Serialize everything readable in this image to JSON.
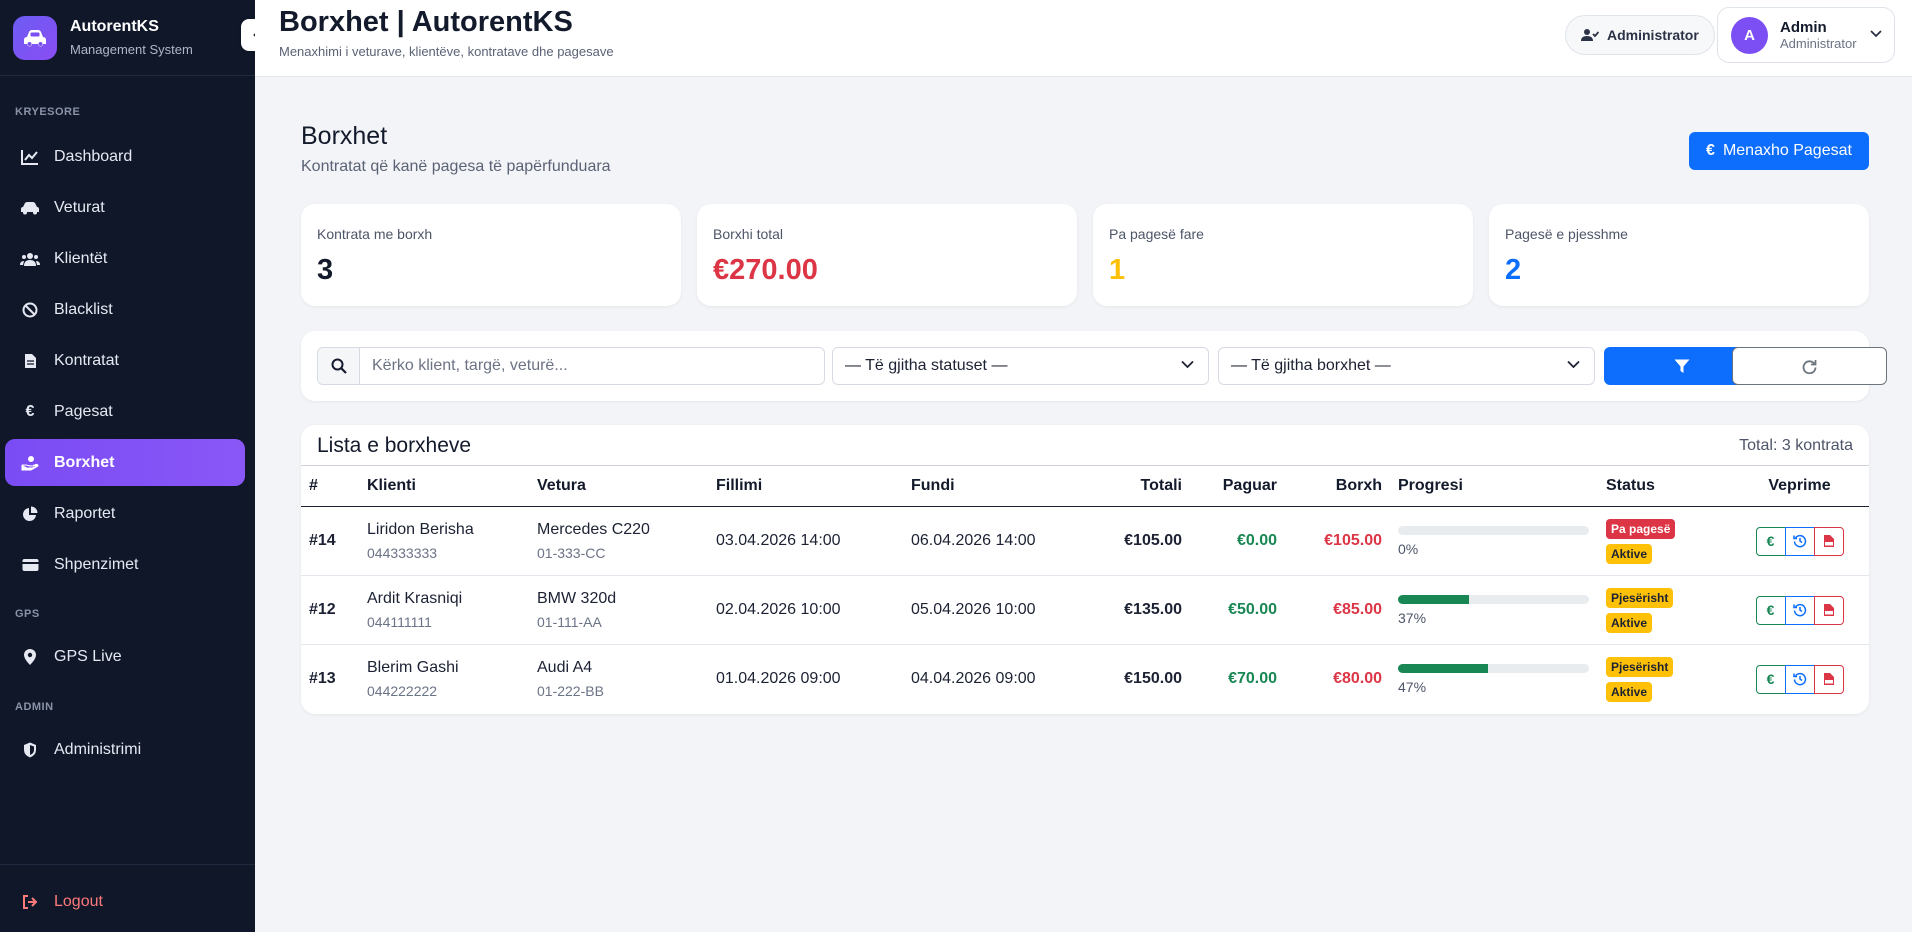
{
  "brand": {
    "name": "AutorentKS",
    "subtitle": "Management System"
  },
  "sidebar": {
    "sections": {
      "main": "KRYESORE",
      "gps": "GPS",
      "admin": "ADMIN"
    },
    "items": [
      {
        "label": "Dashboard",
        "icon": "chart-line-icon"
      },
      {
        "label": "Veturat",
        "icon": "car-icon"
      },
      {
        "label": "Klientët",
        "icon": "users-icon"
      },
      {
        "label": "Blacklist",
        "icon": "ban-icon"
      },
      {
        "label": "Kontratat",
        "icon": "file-icon"
      },
      {
        "label": "Pagesat",
        "icon": "euro-icon"
      },
      {
        "label": "Borxhet",
        "icon": "hand-coin-icon",
        "active": true
      },
      {
        "label": "Raportet",
        "icon": "pie-chart-icon"
      },
      {
        "label": "Shpenzimet",
        "icon": "wallet-icon"
      },
      {
        "label": "GPS Live",
        "icon": "map-pin-icon"
      },
      {
        "label": "Administrimi",
        "icon": "shield-icon"
      }
    ],
    "logout": "Logout"
  },
  "topbar": {
    "title": "Borxhet | AutorentKS",
    "subtitle": "Menaxhimi i veturave, klientëve, kontratave dhe pagesave",
    "role": "Administrator",
    "user": {
      "initial": "A",
      "name": "Admin",
      "role": "Administrator"
    }
  },
  "page": {
    "title": "Borxhet",
    "subtitle": "Kontratat që kanë pagesa të papërfunduara",
    "manage_button": "Menaxho Pagesat"
  },
  "stats": [
    {
      "label": "Kontrata me borxh",
      "value": "3",
      "color": "#131a2b"
    },
    {
      "label": "Borxhi total",
      "value": "€270.00",
      "color": "#dc3545"
    },
    {
      "label": "Pa pagesë fare",
      "value": "1",
      "color": "#ffc107"
    },
    {
      "label": "Pagesë e pjesshme",
      "value": "2",
      "color": "#0d6efd"
    }
  ],
  "filters": {
    "search_placeholder": "Kërko klient, targë, veturë...",
    "status_select": "— Të gjitha statuset —",
    "debt_select": "— Të gjitha borxhet —"
  },
  "table": {
    "title": "Lista e borxheve",
    "total": "Total: 3 kontrata",
    "headers": [
      "#",
      "Klienti",
      "Vetura",
      "Fillimi",
      "Fundi",
      "Totali",
      "Paguar",
      "Borxh",
      "Progresi",
      "Status",
      "Veprime"
    ],
    "rows": [
      {
        "id": "#14",
        "client": "Liridon Berisha",
        "phone": "044333333",
        "car": "Mercedes C220",
        "plate": "01-333-CC",
        "start": "03.04.2026 14:00",
        "end": "06.04.2026 14:00",
        "total": "€105.00",
        "paid": "€0.00",
        "debt": "€105.00",
        "progress": 0,
        "progress_label": "0%",
        "payment_status": "Pa pagesë",
        "contract_status": "Aktive"
      },
      {
        "id": "#12",
        "client": "Ardit Krasniqi",
        "phone": "044111111",
        "car": "BMW 320d",
        "plate": "01-111-AA",
        "start": "02.04.2026 10:00",
        "end": "05.04.2026 10:00",
        "total": "€135.00",
        "paid": "€50.00",
        "debt": "€85.00",
        "progress": 37,
        "progress_label": "37%",
        "payment_status": "Pjesërisht",
        "contract_status": "Aktive"
      },
      {
        "id": "#13",
        "client": "Blerim Gashi",
        "phone": "044222222",
        "car": "Audi A4",
        "plate": "01-222-BB",
        "start": "01.04.2026 09:00",
        "end": "04.04.2026 09:00",
        "total": "€150.00",
        "paid": "€70.00",
        "debt": "€80.00",
        "progress": 47,
        "progress_label": "47%",
        "payment_status": "Pjesërisht",
        "contract_status": "Aktive"
      }
    ]
  }
}
